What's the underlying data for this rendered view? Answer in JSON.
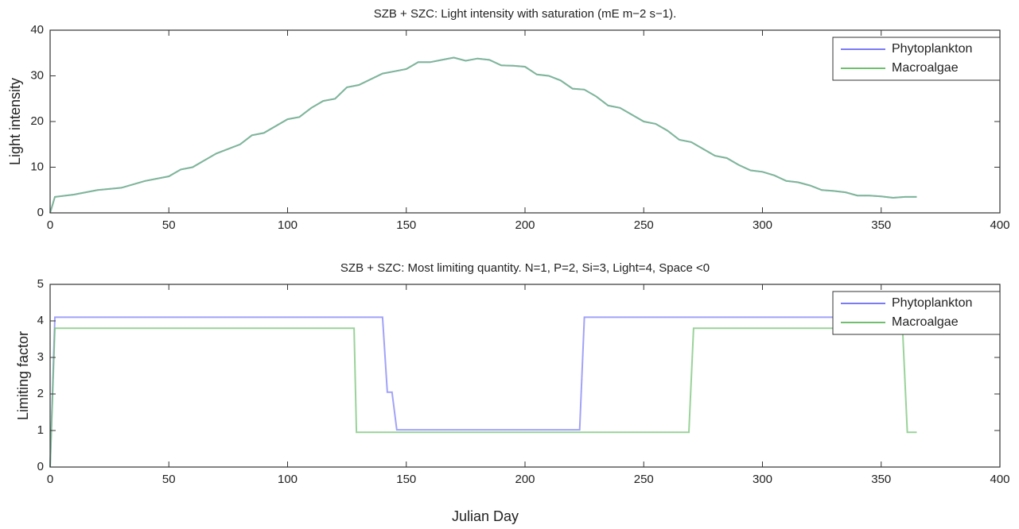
{
  "chart_data": [
    {
      "type": "line",
      "title": "SZB + SZC: Light intensity with saturation (mE m−2 s−1).",
      "ylabel": "Light intensity",
      "xlim": [
        0,
        400
      ],
      "xticks": [
        0,
        50,
        100,
        150,
        200,
        250,
        300,
        350,
        400
      ],
      "ylim": [
        0,
        40
      ],
      "yticks": [
        0,
        10,
        20,
        30,
        40
      ],
      "legend": "upper right",
      "series": [
        {
          "name": "Phytoplankton",
          "color": "#7b7bf5",
          "x": [
            0,
            2,
            10,
            20,
            30,
            40,
            50,
            55,
            60,
            70,
            80,
            85,
            90,
            100,
            105,
            110,
            115,
            120,
            125,
            130,
            140,
            145,
            150,
            155,
            160,
            165,
            170,
            175,
            180,
            185,
            190,
            195,
            200,
            205,
            210,
            215,
            220,
            225,
            230,
            235,
            240,
            245,
            250,
            255,
            260,
            265,
            270,
            275,
            280,
            285,
            290,
            295,
            300,
            305,
            310,
            315,
            320,
            325,
            330,
            335,
            340,
            345,
            350,
            355,
            360,
            365
          ],
          "values": [
            0,
            3.5,
            4,
            5,
            5.5,
            7,
            8,
            9.5,
            10,
            13,
            15,
            17,
            17.5,
            20.5,
            21,
            23,
            24.5,
            25,
            27.5,
            28,
            30.5,
            31,
            31.5,
            33,
            33,
            33.5,
            34,
            33.3,
            33.8,
            33.5,
            32.3,
            32.2,
            32,
            30.3,
            30,
            29,
            27.2,
            27,
            25.5,
            23.5,
            23,
            21.5,
            20,
            19.5,
            18,
            16,
            15.5,
            14,
            12.5,
            12,
            10.5,
            9.3,
            9,
            8.2,
            7,
            6.7,
            6,
            5,
            4.8,
            4.5,
            3.8,
            3.8,
            3.6,
            3.3,
            3.5,
            3.5
          ]
        },
        {
          "name": "Macroalgae",
          "color": "#6fbf6f",
          "x": [
            0,
            2,
            10,
            20,
            30,
            40,
            50,
            55,
            60,
            70,
            80,
            85,
            90,
            100,
            105,
            110,
            115,
            120,
            125,
            130,
            140,
            145,
            150,
            155,
            160,
            165,
            170,
            175,
            180,
            185,
            190,
            195,
            200,
            205,
            210,
            215,
            220,
            225,
            230,
            235,
            240,
            245,
            250,
            255,
            260,
            265,
            270,
            275,
            280,
            285,
            290,
            295,
            300,
            305,
            310,
            315,
            320,
            325,
            330,
            335,
            340,
            345,
            350,
            355,
            360,
            365
          ],
          "values": [
            0,
            3.5,
            4,
            5,
            5.5,
            7,
            8,
            9.5,
            10,
            13,
            15,
            17,
            17.5,
            20.5,
            21,
            23,
            24.5,
            25,
            27.5,
            28,
            30.5,
            31,
            31.5,
            33,
            33,
            33.5,
            34,
            33.3,
            33.8,
            33.5,
            32.3,
            32.2,
            32,
            30.3,
            30,
            29,
            27.2,
            27,
            25.5,
            23.5,
            23,
            21.5,
            20,
            19.5,
            18,
            16,
            15.5,
            14,
            12.5,
            12,
            10.5,
            9.3,
            9,
            8.2,
            7,
            6.7,
            6,
            5,
            4.8,
            4.5,
            3.8,
            3.8,
            3.6,
            3.3,
            3.5,
            3.5
          ]
        }
      ]
    },
    {
      "type": "line",
      "title": "SZB + SZC: Most limiting quantity.  N=1, P=2, Si=3, Light=4, Space <0",
      "ylabel": "Limiting factor",
      "xlabel": "Julian Day",
      "xlim": [
        0,
        400
      ],
      "xticks": [
        0,
        50,
        100,
        150,
        200,
        250,
        300,
        350,
        400
      ],
      "ylim": [
        0,
        5
      ],
      "yticks": [
        0,
        1,
        2,
        3,
        4,
        5
      ],
      "legend": "upper right",
      "series": [
        {
          "name": "Phytoplankton",
          "color": "#7b7bf5",
          "x": [
            0,
            2,
            140,
            142,
            144,
            146,
            223,
            225,
            365
          ],
          "values": [
            0,
            4.1,
            4.1,
            2.05,
            2.05,
            1.02,
            1.02,
            4.1,
            4.1
          ]
        },
        {
          "name": "Macroalgae",
          "color": "#6fbf6f",
          "x": [
            0,
            2,
            128,
            129,
            269,
            271,
            359,
            361,
            365
          ],
          "values": [
            0,
            3.8,
            3.8,
            0.95,
            0.95,
            3.8,
            3.8,
            0.95,
            0.95
          ]
        }
      ]
    }
  ]
}
